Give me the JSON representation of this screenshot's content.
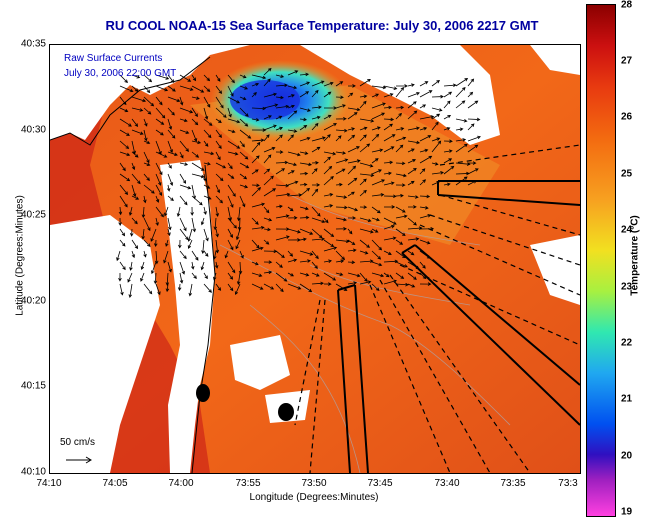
{
  "title": "RU COOL  NOAA-15  Sea Surface Temperature:  July 30, 2006 2217 GMT",
  "overlay": {
    "line1": "Raw Surface Currents",
    "line2": "July 30, 2006 22:00 GMT",
    "scale_label": "50 cm/s"
  },
  "axes": {
    "xlabel": "Longitude (Degrees:Minutes)",
    "ylabel": "Latitude (Degrees:Minutes)",
    "xticks": [
      "74:10",
      "74:05",
      "74:00",
      "73:55",
      "73:50",
      "73:45",
      "73:40",
      "73:35",
      "73:3"
    ],
    "yticks": [
      "40:35",
      "40:30",
      "40:25",
      "40:20",
      "40:15",
      "40:10"
    ]
  },
  "colorbar": {
    "label": "Temperature (°C)",
    "ticks": [
      "28",
      "27",
      "26",
      "25",
      "24",
      "23",
      "22",
      "21",
      "20",
      "19"
    ]
  },
  "colors": {
    "title": "#0000a0",
    "land": "#ffffff",
    "sea_warm": "#f06a10",
    "sea_cold": "#2030e0"
  }
}
